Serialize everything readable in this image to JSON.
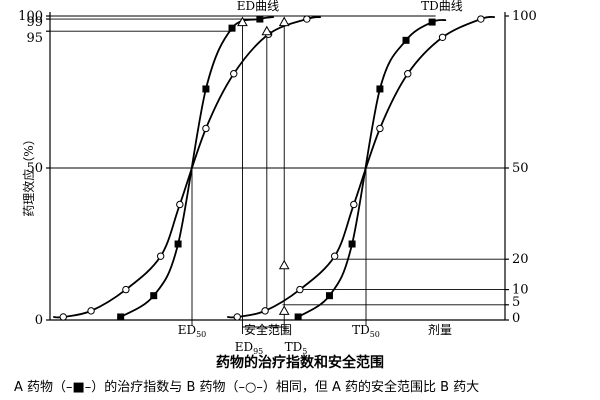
{
  "chart_data": {
    "type": "line",
    "title": "药物的治疗指数和安全范围",
    "note": "A 药物（–■–）的治疗指数与 B 药物（–○–）相同，但 A 药的安全范围比 B 药大",
    "ylabel": "药理效应（%）",
    "xlabel": "剂量",
    "ylim": [
      0,
      100
    ],
    "left_ticks": [
      "0",
      "50",
      "95",
      "99",
      "100"
    ],
    "right_ticks": [
      "0",
      "5",
      "10",
      "20",
      "50",
      "100"
    ],
    "curve_labels": {
      "ed": "ED曲线",
      "td": "TD曲线"
    },
    "x_markers": {
      "ed50": {
        "main": "ED",
        "sub": "50"
      },
      "ed95": {
        "main": "ED",
        "sub": "95"
      },
      "td5": {
        "main": "TD",
        "sub": "5"
      },
      "td50": {
        "main": "TD",
        "sub": "50"
      }
    },
    "safety_range_label": "安全范围",
    "dose_units": "relative dose (ED50 = 0, TD50 = 1)",
    "x": {
      "ed50": 0,
      "ed95": 0.29,
      "td5": 0.53,
      "td50": 1
    },
    "series": [
      {
        "name": "A 药物 ED",
        "marker": "filled-square",
        "curve": "ed",
        "points": [
          [
            -0.41,
            1
          ],
          [
            -0.22,
            8
          ],
          [
            -0.08,
            25
          ],
          [
            0.08,
            76
          ],
          [
            0.23,
            96
          ],
          [
            0.39,
            99
          ]
        ]
      },
      {
        "name": "B 药物 ED",
        "marker": "open-circle",
        "curve": "ed",
        "points": [
          [
            -0.74,
            1
          ],
          [
            -0.58,
            3
          ],
          [
            -0.38,
            10
          ],
          [
            -0.18,
            21
          ],
          [
            -0.07,
            38
          ],
          [
            0.08,
            63
          ],
          [
            0.24,
            81
          ],
          [
            0.44,
            94
          ],
          [
            0.66,
            99
          ]
        ]
      },
      {
        "name": "A 药物 TD",
        "marker": "filled-square",
        "curve": "td",
        "points": [
          [
            0.61,
            1
          ],
          [
            0.79,
            8
          ],
          [
            0.92,
            25
          ],
          [
            1.08,
            76
          ],
          [
            1.23,
            92
          ],
          [
            1.38,
            98
          ]
        ]
      },
      {
        "name": "B 药物 TD",
        "marker": "open-circle",
        "curve": "td",
        "points": [
          [
            0.26,
            1
          ],
          [
            0.42,
            3
          ],
          [
            0.62,
            10
          ],
          [
            0.82,
            21
          ],
          [
            0.93,
            38
          ],
          [
            1.08,
            63
          ],
          [
            1.24,
            81
          ],
          [
            1.44,
            93
          ],
          [
            1.66,
            99
          ]
        ]
      }
    ],
    "safety_points": [
      {
        "y": 98,
        "x": 0.29
      },
      {
        "y": 95,
        "x": 0.43
      },
      {
        "y": 98,
        "x": 0.53
      },
      {
        "y": 18,
        "x": 0.53
      },
      {
        "y": 3,
        "x": 0.53
      }
    ]
  }
}
